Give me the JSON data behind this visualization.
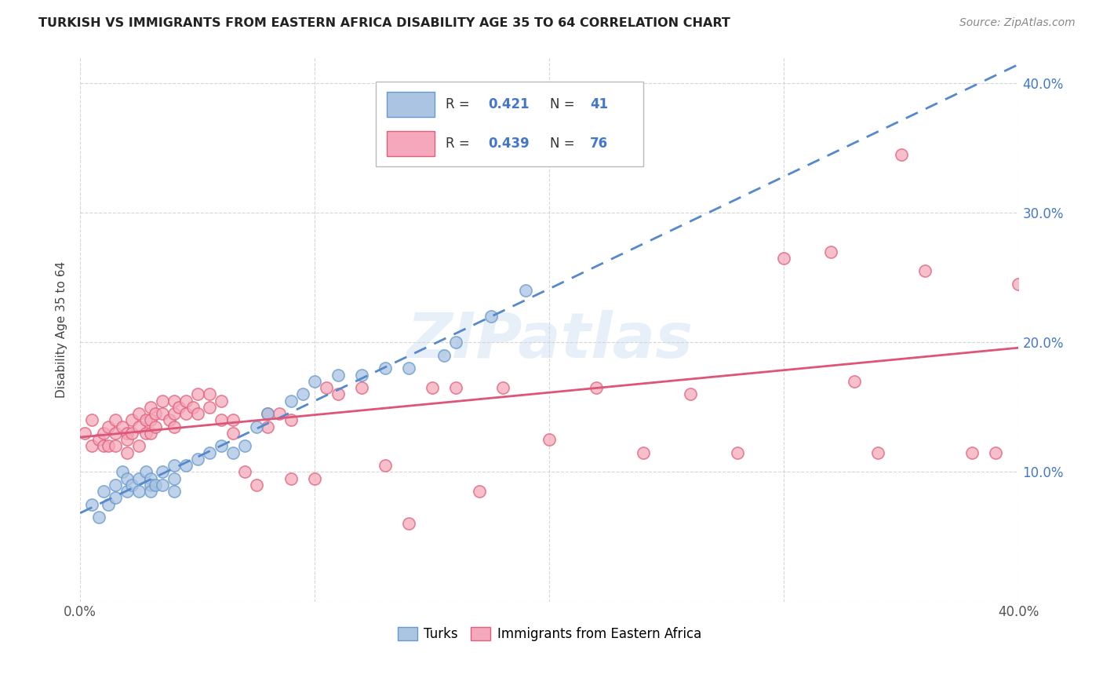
{
  "title": "TURKISH VS IMMIGRANTS FROM EASTERN AFRICA DISABILITY AGE 35 TO 64 CORRELATION CHART",
  "source": "Source: ZipAtlas.com",
  "ylabel": "Disability Age 35 to 64",
  "xlim": [
    0.0,
    0.4
  ],
  "ylim": [
    0.0,
    0.42
  ],
  "background_color": "#ffffff",
  "grid_color": "#cccccc",
  "turks_color": "#aac4e2",
  "turks_edge_color": "#6699cc",
  "immigrants_color": "#f5a8bb",
  "immigrants_edge_color": "#e0607a",
  "turks_R": 0.421,
  "turks_N": 41,
  "immigrants_R": 0.439,
  "immigrants_N": 76,
  "turks_line_color": "#5588cc",
  "turks_line_color2": "#aabbdd",
  "immigrants_line_color": "#dd5577",
  "legend_values_color": "#4477cc",
  "watermark": "ZIPatlas",
  "turks_scatter_x": [
    0.005,
    0.008,
    0.01,
    0.012,
    0.015,
    0.015,
    0.018,
    0.02,
    0.02,
    0.022,
    0.025,
    0.025,
    0.028,
    0.03,
    0.03,
    0.03,
    0.032,
    0.035,
    0.035,
    0.04,
    0.04,
    0.04,
    0.045,
    0.05,
    0.055,
    0.06,
    0.065,
    0.07,
    0.075,
    0.08,
    0.09,
    0.095,
    0.1,
    0.11,
    0.12,
    0.13,
    0.14,
    0.155,
    0.16,
    0.175,
    0.19
  ],
  "turks_scatter_y": [
    0.075,
    0.065,
    0.085,
    0.075,
    0.09,
    0.08,
    0.1,
    0.095,
    0.085,
    0.09,
    0.095,
    0.085,
    0.1,
    0.095,
    0.09,
    0.085,
    0.09,
    0.1,
    0.09,
    0.105,
    0.095,
    0.085,
    0.105,
    0.11,
    0.115,
    0.12,
    0.115,
    0.12,
    0.135,
    0.145,
    0.155,
    0.16,
    0.17,
    0.175,
    0.175,
    0.18,
    0.18,
    0.19,
    0.2,
    0.22,
    0.24
  ],
  "immigrants_scatter_x": [
    0.002,
    0.005,
    0.005,
    0.008,
    0.01,
    0.01,
    0.012,
    0.012,
    0.015,
    0.015,
    0.015,
    0.018,
    0.02,
    0.02,
    0.02,
    0.022,
    0.022,
    0.025,
    0.025,
    0.025,
    0.028,
    0.028,
    0.03,
    0.03,
    0.03,
    0.032,
    0.032,
    0.035,
    0.035,
    0.038,
    0.04,
    0.04,
    0.04,
    0.042,
    0.045,
    0.045,
    0.048,
    0.05,
    0.05,
    0.055,
    0.055,
    0.06,
    0.06,
    0.065,
    0.065,
    0.07,
    0.075,
    0.08,
    0.08,
    0.085,
    0.09,
    0.09,
    0.1,
    0.105,
    0.11,
    0.12,
    0.13,
    0.14,
    0.15,
    0.16,
    0.17,
    0.18,
    0.2,
    0.22,
    0.24,
    0.26,
    0.28,
    0.3,
    0.32,
    0.33,
    0.34,
    0.35,
    0.36,
    0.38,
    0.39,
    0.4
  ],
  "immigrants_scatter_y": [
    0.13,
    0.12,
    0.14,
    0.125,
    0.13,
    0.12,
    0.135,
    0.12,
    0.14,
    0.13,
    0.12,
    0.135,
    0.13,
    0.125,
    0.115,
    0.14,
    0.13,
    0.145,
    0.135,
    0.12,
    0.14,
    0.13,
    0.15,
    0.14,
    0.13,
    0.145,
    0.135,
    0.155,
    0.145,
    0.14,
    0.155,
    0.145,
    0.135,
    0.15,
    0.155,
    0.145,
    0.15,
    0.16,
    0.145,
    0.16,
    0.15,
    0.155,
    0.14,
    0.14,
    0.13,
    0.1,
    0.09,
    0.145,
    0.135,
    0.145,
    0.14,
    0.095,
    0.095,
    0.165,
    0.16,
    0.165,
    0.105,
    0.06,
    0.165,
    0.165,
    0.085,
    0.165,
    0.125,
    0.165,
    0.115,
    0.16,
    0.115,
    0.265,
    0.27,
    0.17,
    0.115,
    0.345,
    0.255,
    0.115,
    0.115,
    0.245
  ]
}
